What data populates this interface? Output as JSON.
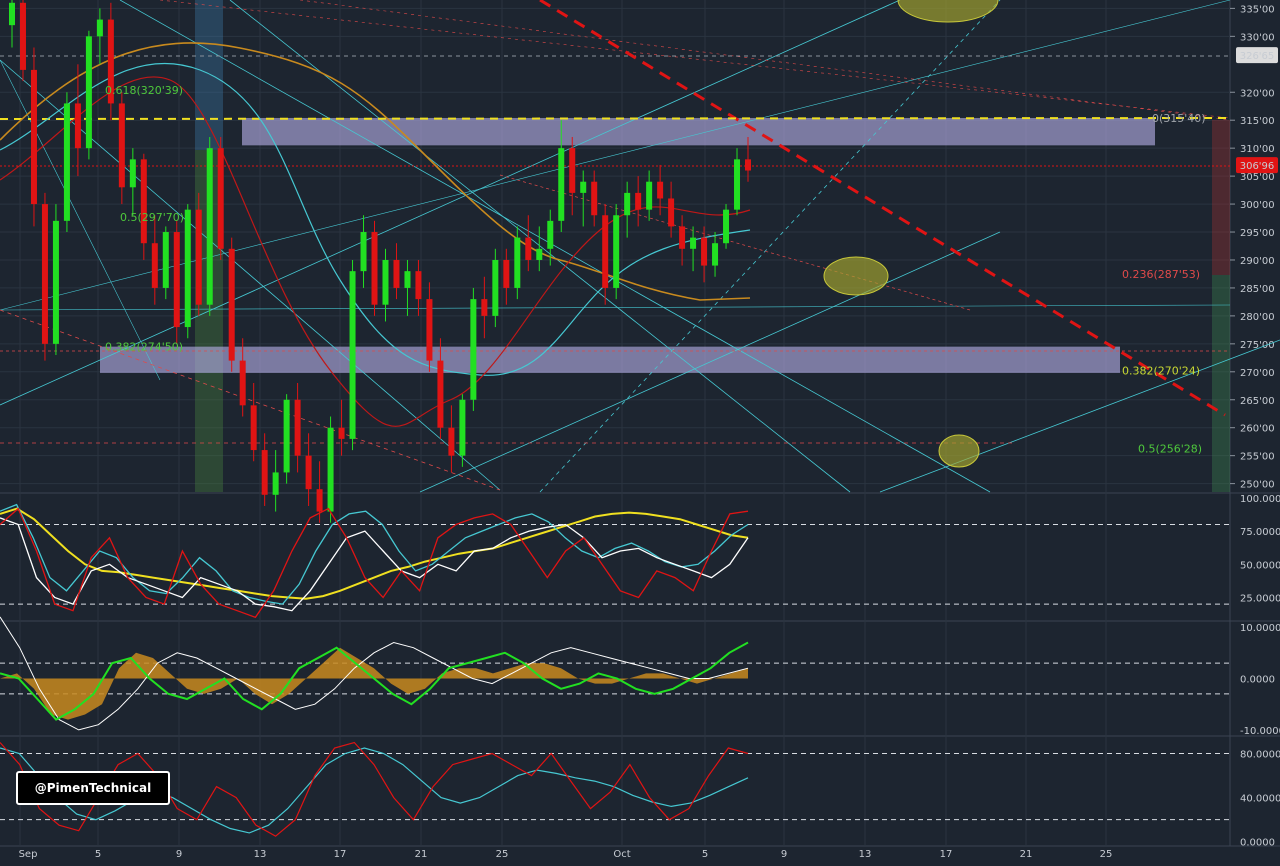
{
  "watermark": "@PimenTechnical",
  "colors": {
    "background": "#1d2530",
    "bull": "#22e022",
    "bear": "#e01414",
    "zone": "#b4aee6",
    "ema_orange": "#c88a1e",
    "cyan": "#46c8d2",
    "fib_green": "#4ec83c",
    "fib_red": "#e04a4a",
    "dashed_yellow": "#f0e020",
    "ellipse": "#a8a830"
  },
  "price_axis": {
    "labels": [
      "335'00",
      "330'00",
      "320'00",
      "315'00",
      "310'00",
      "305'00",
      "300'00",
      "295'00",
      "290'00",
      "285'00",
      "280'00",
      "275'00",
      "270'00",
      "265'00",
      "260'00",
      "255'00",
      "250'00"
    ],
    "values": [
      335,
      330,
      320,
      315,
      310,
      305,
      300,
      295,
      290,
      285,
      280,
      275,
      270,
      265,
      260,
      255,
      250
    ],
    "range": [
      248.5,
      336.5
    ],
    "tag_1": {
      "label": "326'65",
      "value": 326.65,
      "color": "#dcdcdc"
    },
    "tag_2": {
      "label": "306'96",
      "value": 306.96,
      "color": "#e01414"
    }
  },
  "osc1_axis": {
    "labels": [
      "100.0000",
      "75.0000",
      "50.0000",
      "25.0000"
    ],
    "values": [
      100,
      75,
      50,
      25
    ],
    "range": [
      8,
      103
    ]
  },
  "osc2_axis": {
    "labels": [
      "10.0000",
      "0.0000",
      "-10.0000"
    ],
    "values": [
      10,
      0,
      -10
    ],
    "range": [
      -11,
      11
    ]
  },
  "osc3_axis": {
    "labels": [
      "80.0000",
      "40.0000",
      "0.0000"
    ],
    "values": [
      80,
      40,
      0
    ],
    "range": [
      -3,
      95
    ]
  },
  "time_axis": {
    "labels": [
      "Sep",
      "5",
      "9",
      "13",
      "17",
      "21",
      "25",
      "Oct",
      "5",
      "9",
      "13",
      "17",
      "21",
      "25"
    ]
  },
  "fib_labels": {
    "f0618": "0.618(320'39)",
    "f05_left": "0.5(297'70)",
    "f0382_left": "0.382(274'50)",
    "f0_right": "0(315'40)",
    "f0236_right": "0.236(287'53)",
    "f0382_right": "0.382(270'24)",
    "f05_right": "0.5(256'28)"
  },
  "chart_data": [
    {
      "type": "candlestick",
      "title": "",
      "ylim": [
        248.5,
        336.5
      ],
      "y_ticks": [
        250,
        255,
        260,
        265,
        270,
        275,
        280,
        285,
        290,
        295,
        300,
        305,
        310,
        315,
        320,
        330,
        335
      ],
      "x_ticks": [
        "Sep",
        "5",
        "9",
        "13",
        "17",
        "21",
        "25",
        "Oct",
        "5",
        "9",
        "13",
        "17",
        "21",
        "25"
      ],
      "last_price": 306.96,
      "zones": [
        {
          "from": 310.5,
          "to": 315.4
        },
        {
          "from": 269.8,
          "to": 274.5
        }
      ],
      "fib_levels": [
        {
          "label": "0.618(320'39)",
          "value": 320.39
        },
        {
          "label": "0.5(297'70)",
          "value": 297.7
        },
        {
          "label": "0.382(274'50)",
          "value": 274.5
        },
        {
          "label": "0(315'40)",
          "value": 315.4
        },
        {
          "label": "0.236(287'53)",
          "value": 287.53
        },
        {
          "label": "0.382(270'24)",
          "value": 270.24
        },
        {
          "label": "0.5(256'28)",
          "value": 256.28
        }
      ],
      "candles": [
        [
          332,
          340,
          328,
          336
        ],
        [
          336,
          338,
          322,
          324
        ],
        [
          324,
          328,
          296,
          300
        ],
        [
          300,
          302,
          272,
          275
        ],
        [
          275,
          300,
          273,
          297
        ],
        [
          297,
          320,
          295,
          318
        ],
        [
          318,
          325,
          305,
          310
        ],
        [
          310,
          331,
          308,
          330
        ],
        [
          330,
          335,
          325,
          333
        ],
        [
          333,
          336,
          315,
          318
        ],
        [
          318,
          320,
          300,
          303
        ],
        [
          303,
          310,
          298,
          308
        ],
        [
          308,
          309,
          290,
          293
        ],
        [
          293,
          298,
          282,
          285
        ],
        [
          285,
          296,
          283,
          295
        ],
        [
          295,
          297,
          275,
          278
        ],
        [
          278,
          300,
          276,
          299
        ],
        [
          299,
          302,
          280,
          282
        ],
        [
          282,
          312,
          280,
          310
        ],
        [
          310,
          312,
          290,
          292
        ],
        [
          292,
          294,
          270,
          272
        ],
        [
          272,
          276,
          262,
          264
        ],
        [
          264,
          268,
          254,
          256
        ],
        [
          256,
          259,
          246,
          248
        ],
        [
          248,
          256,
          245,
          252
        ],
        [
          252,
          266,
          250,
          265
        ],
        [
          265,
          268,
          252,
          255
        ],
        [
          255,
          259,
          246,
          249
        ],
        [
          249,
          254,
          243,
          245
        ],
        [
          245,
          262,
          243,
          260
        ],
        [
          260,
          265,
          255,
          258
        ],
        [
          258,
          290,
          256,
          288
        ],
        [
          288,
          298,
          285,
          295
        ],
        [
          295,
          297,
          280,
          282
        ],
        [
          282,
          292,
          279,
          290
        ],
        [
          290,
          293,
          283,
          285
        ],
        [
          285,
          290,
          280,
          288
        ],
        [
          288,
          290,
          280,
          283
        ],
        [
          283,
          286,
          270,
          272
        ],
        [
          272,
          276,
          258,
          260
        ],
        [
          260,
          264,
          252,
          255
        ],
        [
          255,
          266,
          253,
          265
        ],
        [
          265,
          285,
          263,
          283
        ],
        [
          283,
          287,
          276,
          280
        ],
        [
          280,
          292,
          278,
          290
        ],
        [
          290,
          292,
          282,
          285
        ],
        [
          285,
          296,
          283,
          294
        ],
        [
          294,
          298,
          288,
          290
        ],
        [
          290,
          296,
          288,
          292
        ],
        [
          292,
          299,
          289,
          297
        ],
        [
          297,
          315,
          295,
          310
        ],
        [
          310,
          312,
          298,
          302
        ],
        [
          302,
          306,
          296,
          304
        ],
        [
          304,
          306,
          296,
          298
        ],
        [
          298,
          300,
          282,
          285
        ],
        [
          285,
          300,
          283,
          298
        ],
        [
          298,
          304,
          294,
          302
        ],
        [
          302,
          305,
          296,
          299
        ],
        [
          299,
          306,
          297,
          304
        ],
        [
          304,
          307,
          298,
          301
        ],
        [
          301,
          304,
          294,
          296
        ],
        [
          296,
          298,
          289,
          292
        ],
        [
          292,
          296,
          288,
          294
        ],
        [
          294,
          296,
          286,
          289
        ],
        [
          289,
          295,
          287,
          293
        ],
        [
          293,
          300,
          292,
          299
        ],
        [
          299,
          310,
          298,
          308
        ],
        [
          308,
          312,
          304,
          306
        ]
      ]
    },
    {
      "type": "line",
      "title": "",
      "ylim": [
        8,
        103
      ],
      "y_ticks": [
        100,
        75,
        50,
        25
      ],
      "series": [
        {
          "color": "#f0e020",
          "values": [
            88,
            92,
            84,
            72,
            60,
            50,
            45,
            44,
            42,
            40,
            38,
            36,
            34,
            32,
            30,
            28,
            26,
            25,
            24,
            26,
            30,
            35,
            40,
            45,
            48,
            52,
            55,
            58,
            60,
            62,
            66,
            70,
            74,
            78,
            82,
            86,
            88,
            89,
            88,
            86,
            84,
            80,
            76,
            72,
            70
          ]
        },
        {
          "color": "#46c8d2",
          "values": [
            90,
            95,
            70,
            40,
            30,
            45,
            60,
            55,
            40,
            30,
            28,
            40,
            55,
            45,
            30,
            25,
            22,
            20,
            35,
            60,
            80,
            88,
            90,
            80,
            60,
            45,
            50,
            60,
            70,
            75,
            80,
            85,
            88,
            82,
            70,
            60,
            55,
            62,
            66,
            60,
            52,
            48,
            50,
            60,
            72,
            80
          ]
        },
        {
          "color": "#ffffff",
          "values": [
            85,
            80,
            40,
            25,
            20,
            45,
            50,
            40,
            35,
            30,
            25,
            40,
            35,
            30,
            20,
            18,
            15,
            30,
            50,
            70,
            75,
            60,
            45,
            40,
            50,
            45,
            60,
            62,
            70,
            75,
            78,
            80,
            70,
            55,
            60,
            62,
            55,
            50,
            45,
            40,
            50,
            70
          ]
        },
        {
          "color": "#e01414",
          "values": [
            80,
            92,
            60,
            20,
            15,
            55,
            70,
            40,
            25,
            20,
            60,
            35,
            20,
            15,
            10,
            30,
            60,
            85,
            92,
            70,
            40,
            25,
            45,
            30,
            70,
            80,
            85,
            88,
            80,
            60,
            40,
            60,
            70,
            50,
            30,
            25,
            45,
            40,
            30,
            60,
            88,
            90
          ]
        }
      ]
    },
    {
      "type": "area",
      "title": "",
      "ylim": [
        -11,
        11
      ],
      "y_ticks": [
        10,
        0,
        -10
      ],
      "series": [
        {
          "color": "#c88a1e",
          "values": [
            0,
            1,
            -2,
            -7,
            -8,
            -7,
            -5,
            2,
            5,
            4,
            1,
            -2,
            -3,
            -2,
            0,
            -3,
            -5,
            -3,
            0,
            3,
            6,
            4,
            2,
            -1,
            -3,
            -2,
            1,
            2,
            2,
            1,
            2,
            3,
            3,
            2,
            0,
            -1,
            -1,
            0,
            1,
            1,
            0,
            -1,
            0,
            1,
            2
          ]
        },
        {
          "color": "#22e022",
          "values": [
            1,
            0,
            -4,
            -8,
            -6,
            -3,
            3,
            4,
            0,
            -3,
            -4,
            -2,
            0,
            -4,
            -6,
            -3,
            2,
            4,
            6,
            3,
            0,
            -3,
            -5,
            -2,
            2,
            3,
            4,
            5,
            3,
            0,
            -2,
            -1,
            1,
            0,
            -2,
            -3,
            -2,
            0,
            2,
            5,
            7
          ]
        },
        {
          "color": "#ffffff",
          "values": [
            12,
            6,
            -2,
            -8,
            -10,
            -9,
            -6,
            -2,
            3,
            5,
            4,
            2,
            0,
            -2,
            -4,
            -6,
            -5,
            -2,
            2,
            5,
            7,
            6,
            4,
            2,
            0,
            -1,
            1,
            3,
            5,
            6,
            5,
            4,
            3,
            2,
            1,
            0,
            0,
            1,
            2
          ]
        }
      ]
    },
    {
      "type": "line",
      "title": "",
      "ylim": [
        -3,
        95
      ],
      "y_ticks": [
        80,
        40,
        0
      ],
      "series": [
        {
          "color": "#46c8d2",
          "values": [
            85,
            80,
            60,
            40,
            25,
            20,
            28,
            38,
            45,
            40,
            30,
            20,
            12,
            8,
            15,
            30,
            50,
            70,
            80,
            85,
            80,
            70,
            55,
            40,
            35,
            40,
            50,
            60,
            65,
            62,
            58,
            55,
            50,
            42,
            36,
            32,
            35,
            42,
            50,
            58
          ]
        },
        {
          "color": "#e01414",
          "values": [
            90,
            70,
            30,
            15,
            10,
            40,
            70,
            80,
            60,
            30,
            20,
            50,
            40,
            15,
            5,
            20,
            60,
            85,
            90,
            70,
            40,
            20,
            50,
            70,
            75,
            80,
            70,
            60,
            80,
            55,
            30,
            45,
            70,
            40,
            20,
            30,
            60,
            85,
            80
          ]
        }
      ]
    }
  ]
}
